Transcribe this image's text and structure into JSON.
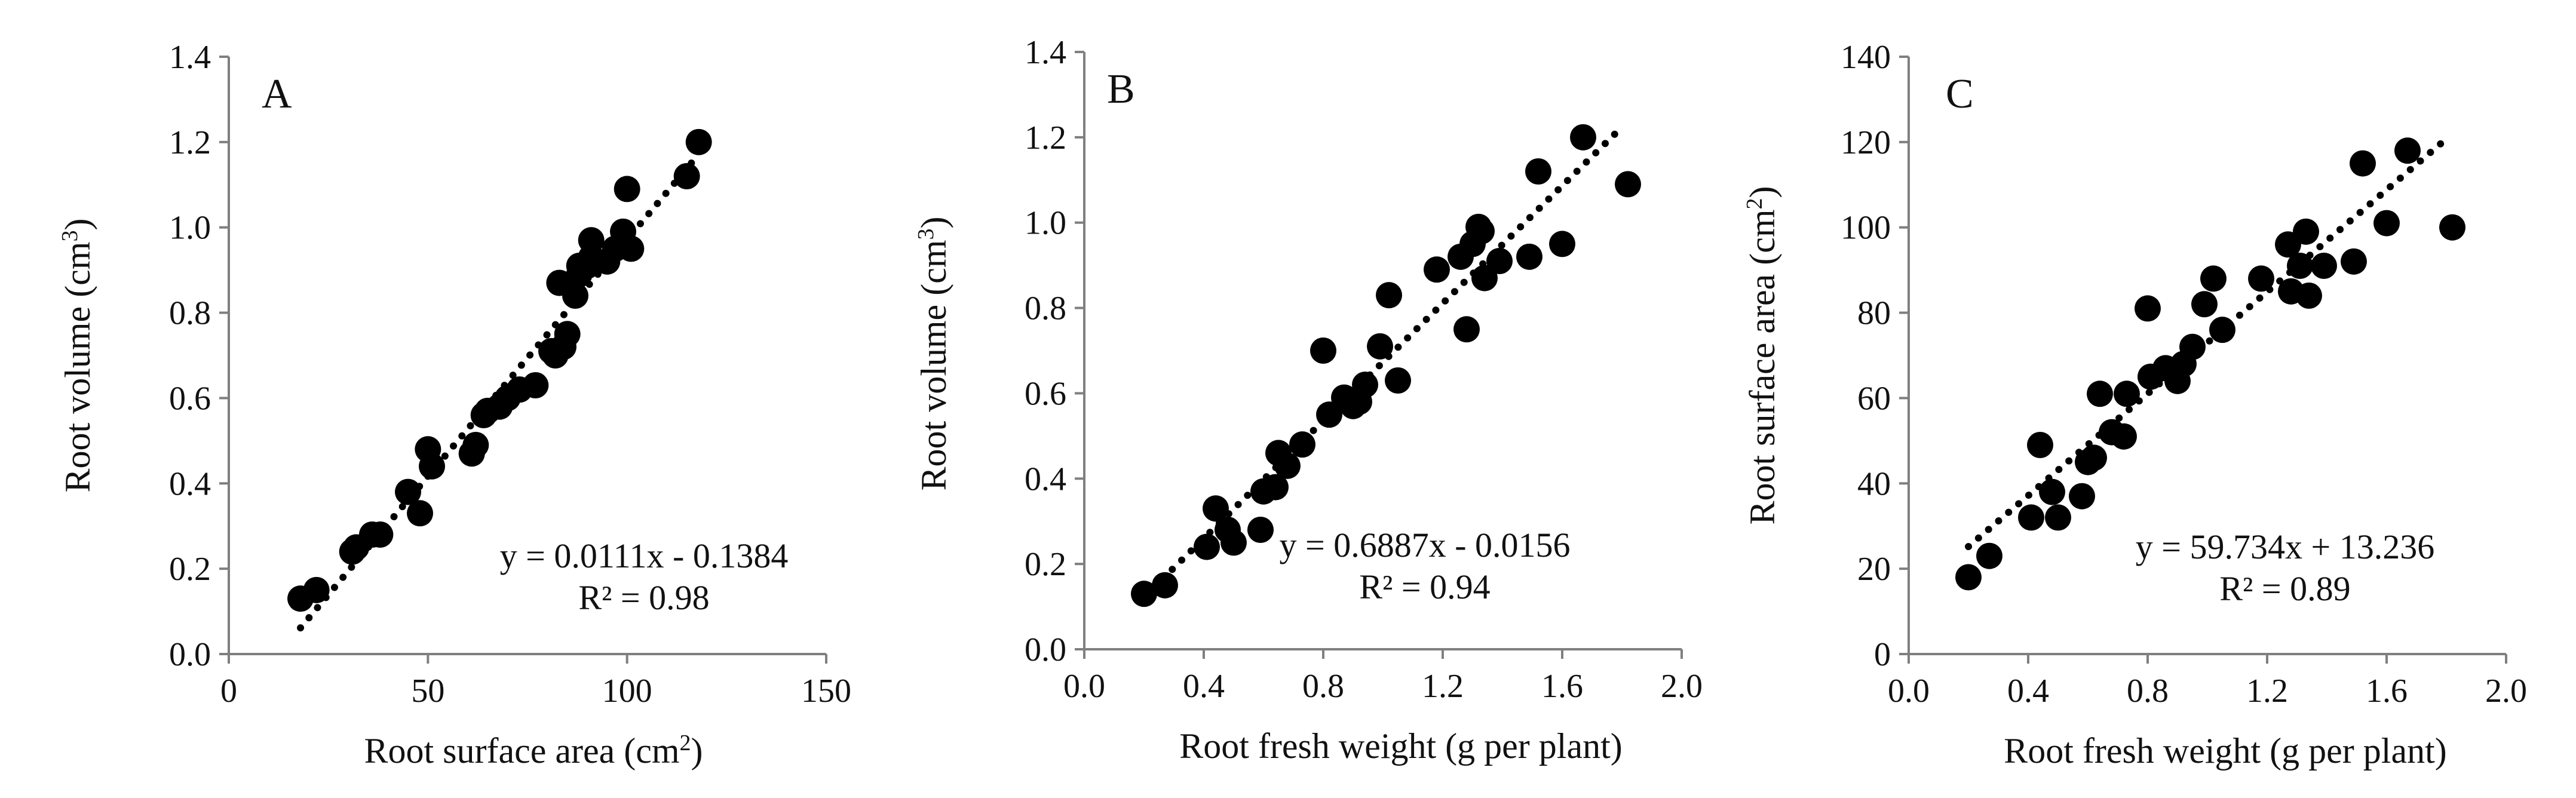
{
  "chart_data": [
    {
      "type": "scatter",
      "panel_label": "A",
      "xlabel": "Root surface area (cm",
      "xlabel_sup": "2",
      "xlabel_end": ")",
      "ylabel": "Root volume (cm",
      "ylabel_sup": "3",
      "ylabel_end": ")",
      "xlim": [
        0,
        150
      ],
      "ylim": [
        0,
        1.4
      ],
      "xticks": [
        0,
        50,
        100,
        150
      ],
      "xtick_labels": [
        "0",
        "50",
        "100",
        "150"
      ],
      "yticks": [
        0,
        0.2,
        0.4,
        0.6,
        0.8,
        1.0,
        1.2,
        1.4
      ],
      "ytick_labels": [
        "0.0",
        "0.2",
        "0.4",
        "0.6",
        "0.8",
        "1.0",
        "1.2",
        "1.4"
      ],
      "equation": "y = 0.0111x - 0.1384",
      "r2": "R² = 0.98",
      "trend": {
        "slope": 0.0111,
        "intercept": -0.1384,
        "x_range": [
          18,
          118
        ]
      },
      "x": [
        18,
        22,
        31,
        32,
        36,
        38,
        45,
        48,
        50,
        51,
        61,
        62,
        64,
        65,
        68,
        70,
        73,
        77,
        81,
        82,
        83,
        84,
        85,
        87,
        88,
        88,
        90,
        91,
        91,
        95,
        97,
        99,
        100,
        101,
        115,
        118
      ],
      "y": [
        0.13,
        0.15,
        0.24,
        0.25,
        0.28,
        0.28,
        0.38,
        0.33,
        0.48,
        0.44,
        0.47,
        0.49,
        0.56,
        0.57,
        0.58,
        0.6,
        0.62,
        0.63,
        0.71,
        0.7,
        0.87,
        0.72,
        0.75,
        0.84,
        0.89,
        0.91,
        0.91,
        0.97,
        0.93,
        0.92,
        0.95,
        0.99,
        1.09,
        0.95,
        1.12,
        1.2
      ]
    },
    {
      "type": "scatter",
      "panel_label": "B",
      "xlabel": "Root fresh weight (g per plant)",
      "xlabel_sup": "",
      "xlabel_end": "",
      "ylabel": "Root volume (cm",
      "ylabel_sup": "3",
      "ylabel_end": ")",
      "xlim": [
        0,
        2.0
      ],
      "ylim": [
        0,
        1.4
      ],
      "xticks": [
        0,
        0.4,
        0.8,
        1.2,
        1.6,
        2.0
      ],
      "xtick_labels": [
        "0.0",
        "0.4",
        "0.8",
        "1.2",
        "1.6",
        "2.0"
      ],
      "yticks": [
        0,
        0.2,
        0.4,
        0.6,
        0.8,
        1.0,
        1.2,
        1.4
      ],
      "ytick_labels": [
        "0.0",
        "0.2",
        "0.4",
        "0.6",
        "0.8",
        "1.0",
        "1.2",
        "1.4"
      ],
      "equation": "y = 0.6887x - 0.0156",
      "r2": "R² = 0.94",
      "trend": {
        "slope": 0.6887,
        "intercept": -0.0156,
        "x_range": [
          0.2,
          1.8
        ]
      },
      "x": [
        0.2,
        0.27,
        0.41,
        0.44,
        0.48,
        0.5,
        0.59,
        0.6,
        0.64,
        0.65,
        0.68,
        0.73,
        0.8,
        0.82,
        0.87,
        0.9,
        0.92,
        0.94,
        0.99,
        1.02,
        1.05,
        1.18,
        1.26,
        1.28,
        1.3,
        1.32,
        1.33,
        1.34,
        1.39,
        1.49,
        1.52,
        1.6,
        1.67,
        1.82
      ],
      "y": [
        0.13,
        0.15,
        0.24,
        0.33,
        0.28,
        0.25,
        0.28,
        0.37,
        0.38,
        0.46,
        0.43,
        0.48,
        0.7,
        0.55,
        0.59,
        0.57,
        0.58,
        0.62,
        0.71,
        0.83,
        0.63,
        0.89,
        0.92,
        0.75,
        0.95,
        0.99,
        0.98,
        0.87,
        0.91,
        0.92,
        1.12,
        0.95,
        1.2,
        1.09
      ]
    },
    {
      "type": "scatter",
      "panel_label": "C",
      "xlabel": "Root fresh weight (g per plant)",
      "xlabel_sup": "",
      "xlabel_end": "",
      "ylabel": "Root surface area (cm",
      "ylabel_sup": "2",
      "ylabel_end": ")",
      "xlim": [
        0,
        2.0
      ],
      "ylim": [
        0,
        140
      ],
      "xticks": [
        0,
        0.4,
        0.8,
        1.2,
        1.6,
        2.0
      ],
      "xtick_labels": [
        "0.0",
        "0.4",
        "0.8",
        "1.2",
        "1.6",
        "2.0"
      ],
      "yticks": [
        0,
        20,
        40,
        60,
        80,
        100,
        120,
        140
      ],
      "ytick_labels": [
        "0",
        "20",
        "40",
        "60",
        "80",
        "100",
        "120",
        "140"
      ],
      "equation": "y = 59.734x + 13.236",
      "r2": "R² = 0.89",
      "trend": {
        "slope": 59.734,
        "intercept": 13.236,
        "x_range": [
          0.2,
          1.8
        ]
      },
      "x": [
        0.2,
        0.27,
        0.41,
        0.44,
        0.48,
        0.5,
        0.58,
        0.6,
        0.62,
        0.64,
        0.68,
        0.72,
        0.73,
        0.8,
        0.81,
        0.86,
        0.9,
        0.92,
        0.95,
        0.99,
        1.02,
        1.05,
        1.18,
        1.27,
        1.28,
        1.31,
        1.33,
        1.34,
        1.39,
        1.49,
        1.52,
        1.6,
        1.67,
        1.82
      ],
      "y": [
        18,
        23,
        32,
        49,
        38,
        32,
        37,
        45,
        46,
        61,
        52,
        51,
        61,
        81,
        65,
        67,
        64,
        68,
        72,
        82,
        88,
        76,
        88,
        96,
        85,
        91,
        99,
        84,
        91,
        92,
        115,
        101,
        118,
        100
      ]
    }
  ]
}
